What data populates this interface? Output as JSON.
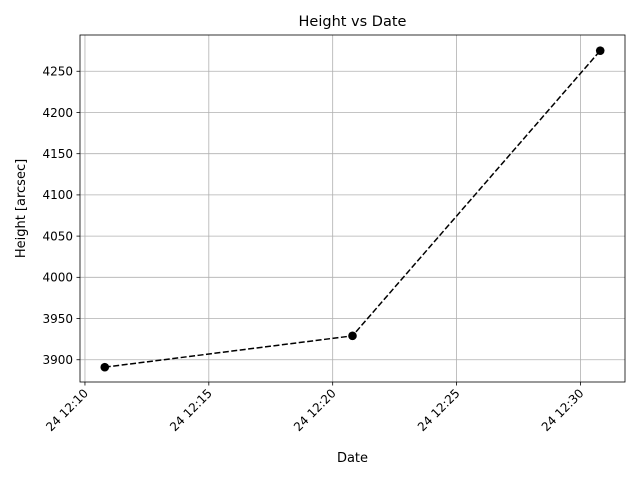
{
  "chart_data": {
    "type": "line",
    "title": "Height vs Date",
    "xlabel": "Date",
    "ylabel": "Height [arcsec]",
    "x_ticks": [
      "24 12:10",
      "24 12:15",
      "24 12:20",
      "24 12:25",
      "24 12:30"
    ],
    "x_tick_minutes": [
      10,
      15,
      20,
      25,
      30
    ],
    "y_ticks": [
      3900,
      3950,
      4000,
      4050,
      4100,
      4150,
      4200,
      4250
    ],
    "xlim_minutes": [
      9.8,
      31.8
    ],
    "ylim": [
      3873,
      4294
    ],
    "grid": true,
    "series": [
      {
        "x_labels": [
          "24 12:10:48",
          "24 12:20:48",
          "24 12:30:48"
        ],
        "x_minutes": [
          10.8,
          20.8,
          30.8
        ],
        "values": [
          3891,
          3929,
          4275
        ],
        "line_style": "dashed",
        "marker": "circle",
        "color": "#000000"
      }
    ]
  }
}
